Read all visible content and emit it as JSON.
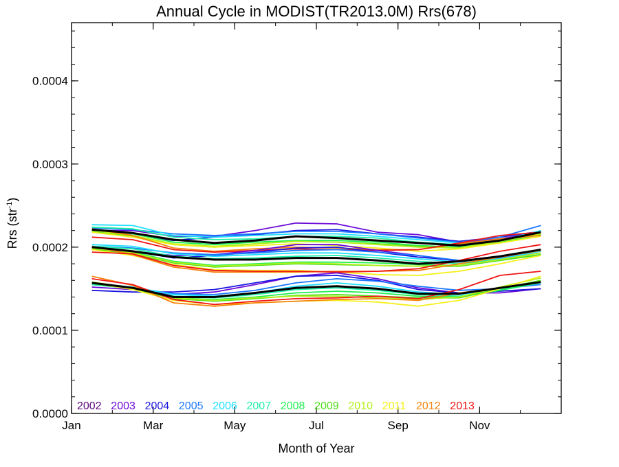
{
  "chart_data": {
    "type": "line",
    "title": "Annual Cycle in MODIST(TR2013.0M) Rrs(678)",
    "xlabel": "Month of Year",
    "ylabel_main": "Rrs (str",
    "ylabel_sup": "-1",
    "ylabel_close": ")",
    "xlim": [
      1,
      13
    ],
    "ylim": [
      0.0,
      0.00047
    ],
    "x_ticks": [
      {
        "value": 1,
        "label": "Jan"
      },
      {
        "value": 3,
        "label": "Mar"
      },
      {
        "value": 5,
        "label": "May"
      },
      {
        "value": 7,
        "label": "Jul"
      },
      {
        "value": 9,
        "label": "Sep"
      },
      {
        "value": 11,
        "label": "Nov"
      }
    ],
    "y_ticks": [
      {
        "value": 0.0,
        "label": "0.0000"
      },
      {
        "value": 0.0001,
        "label": "0.0001"
      },
      {
        "value": 0.0002,
        "label": "0.0002"
      },
      {
        "value": 0.0003,
        "label": "0.0003"
      },
      {
        "value": 0.0004,
        "label": "0.0004"
      }
    ],
    "x": [
      1.5,
      2.5,
      3.5,
      4.5,
      5.5,
      6.5,
      7.5,
      8.5,
      9.5,
      10.5,
      11.5,
      12.5
    ],
    "legend": {
      "placement": "bottom-left inside plot",
      "entries": [
        {
          "label": "2002",
          "color": "#5a0a78"
        },
        {
          "label": "2003",
          "color": "#6a0ad8"
        },
        {
          "label": "2004",
          "color": "#1a14e0"
        },
        {
          "label": "2005",
          "color": "#1a78ff"
        },
        {
          "label": "2006",
          "color": "#1ee0ff"
        },
        {
          "label": "2007",
          "color": "#1ef0a8"
        },
        {
          "label": "2008",
          "color": "#1ef050"
        },
        {
          "label": "2009",
          "color": "#50e01a"
        },
        {
          "label": "2010",
          "color": "#b4f01a"
        },
        {
          "label": "2011",
          "color": "#f5f01a"
        },
        {
          "label": "2012",
          "color": "#f5820a"
        },
        {
          "label": "2013",
          "color": "#f01414"
        }
      ]
    },
    "series": [
      {
        "group": "upper",
        "year": "2003",
        "color": "#6a0ad8",
        "values": [
          0.00022,
          0.00022,
          0.000213,
          0.000213,
          0.00022,
          0.000229,
          0.000228,
          0.000218,
          0.000215,
          0.000206,
          0.00021,
          0.000218
        ]
      },
      {
        "group": "upper",
        "year": "2004",
        "color": "#1a14e0",
        "values": [
          0.000218,
          0.000216,
          0.000208,
          0.000212,
          0.000215,
          0.00022,
          0.000221,
          0.000216,
          0.000212,
          0.000207,
          0.000212,
          0.000219
        ]
      },
      {
        "group": "upper",
        "year": "2005",
        "color": "#1a78ff",
        "values": [
          0.000223,
          0.000221,
          0.000216,
          0.000214,
          0.000216,
          0.000219,
          0.000219,
          0.000216,
          0.000211,
          0.000206,
          0.000212,
          0.000226
        ]
      },
      {
        "group": "upper",
        "year": "2006",
        "color": "#1ee0ff",
        "values": [
          0.000227,
          0.000226,
          0.000214,
          0.000212,
          0.000214,
          0.000216,
          0.000216,
          0.000213,
          0.000209,
          0.000205,
          0.000208,
          0.00022
        ]
      },
      {
        "group": "upper",
        "year": "2007",
        "color": "#1ef0a8",
        "values": [
          0.000224,
          0.000222,
          0.000212,
          0.000209,
          0.00021,
          0.000213,
          0.000213,
          0.000211,
          0.000206,
          0.000203,
          0.000208,
          0.000217
        ]
      },
      {
        "group": "upper",
        "year": "2008",
        "color": "#1ef050",
        "values": [
          0.000221,
          0.000216,
          0.000206,
          0.000203,
          0.000206,
          0.000208,
          0.000208,
          0.000206,
          0.000202,
          0.0002,
          0.000206,
          0.000215
        ]
      },
      {
        "group": "upper",
        "year": "2009",
        "color": "#50e01a",
        "values": [
          0.000219,
          0.000213,
          0.000203,
          0.0002,
          0.000204,
          0.000207,
          0.000206,
          0.000204,
          0.000201,
          0.000199,
          0.000207,
          0.000215
        ]
      },
      {
        "group": "upper",
        "year": "2010",
        "color": "#b4f01a",
        "values": [
          0.00022,
          0.000214,
          0.000204,
          0.000201,
          0.000204,
          0.000207,
          0.000206,
          0.000203,
          0.0002,
          0.000199,
          0.000207,
          0.000216
        ]
      },
      {
        "group": "upper",
        "year": "2011",
        "color": "#f5f01a",
        "values": [
          0.000218,
          0.000212,
          0.000203,
          0.0002,
          0.000202,
          0.000204,
          0.000202,
          0.000199,
          0.000195,
          0.000198,
          0.000205,
          0.000213
        ]
      },
      {
        "group": "upper",
        "year": "2012",
        "color": "#f5820a",
        "values": [
          0.000222,
          0.000214,
          0.000199,
          0.000195,
          0.000198,
          0.0002,
          0.000199,
          0.000197,
          0.000197,
          0.000204,
          0.00021,
          0.000214
        ]
      },
      {
        "group": "upper",
        "year": "2013",
        "color": "#f01414",
        "values": [
          0.000212,
          0.000209,
          0.000197,
          0.000194,
          0.000196,
          0.000198,
          0.000197,
          0.000196,
          0.000197,
          0.000205,
          0.000214,
          0.000218
        ]
      },
      {
        "group": "upper",
        "year": "mean",
        "color": "#000000",
        "bold": true,
        "values": [
          0.000221,
          0.000217,
          0.000209,
          0.000205,
          0.000208,
          0.000213,
          0.000211,
          0.000208,
          0.000205,
          0.000202,
          0.000208,
          0.000218
        ]
      },
      {
        "group": "middle",
        "year": "2003",
        "color": "#6a0ad8",
        "values": [
          0.000199,
          0.000195,
          0.00019,
          0.000191,
          0.000196,
          0.000203,
          0.000203,
          0.000196,
          0.00019,
          0.000183,
          0.000186,
          0.000193
        ]
      },
      {
        "group": "middle",
        "year": "2004",
        "color": "#1a14e0",
        "values": [
          0.000197,
          0.000195,
          0.000187,
          0.00019,
          0.000194,
          0.000199,
          0.0002,
          0.000194,
          0.000188,
          0.000184,
          0.000187,
          0.000196
        ]
      },
      {
        "group": "middle",
        "year": "2005",
        "color": "#1a78ff",
        "values": [
          0.000201,
          0.000199,
          0.000193,
          0.000191,
          0.000193,
          0.000196,
          0.000197,
          0.000194,
          0.00019,
          0.000184,
          0.000188,
          0.000197
        ]
      },
      {
        "group": "middle",
        "year": "2006",
        "color": "#1ee0ff",
        "values": [
          0.000203,
          0.000201,
          0.000192,
          0.000189,
          0.000191,
          0.000193,
          0.000193,
          0.00019,
          0.000186,
          0.000182,
          0.000186,
          0.000195
        ]
      },
      {
        "group": "middle",
        "year": "2007",
        "color": "#1ef0a8",
        "values": [
          0.000201,
          0.000198,
          0.000189,
          0.000186,
          0.000187,
          0.000189,
          0.00019,
          0.000187,
          0.000183,
          0.00018,
          0.000185,
          0.000193
        ]
      },
      {
        "group": "middle",
        "year": "2008",
        "color": "#1ef050",
        "values": [
          0.000199,
          0.000194,
          0.000183,
          0.000178,
          0.00018,
          0.000182,
          0.000182,
          0.000181,
          0.000179,
          0.000178,
          0.000184,
          0.000191
        ]
      },
      {
        "group": "middle",
        "year": "2009",
        "color": "#50e01a",
        "values": [
          0.000198,
          0.000192,
          0.000181,
          0.000176,
          0.000178,
          0.00018,
          0.000179,
          0.000178,
          0.000177,
          0.000177,
          0.000184,
          0.000191
        ]
      },
      {
        "group": "middle",
        "year": "2010",
        "color": "#b4f01a",
        "values": [
          0.000199,
          0.000193,
          0.000182,
          0.000177,
          0.000179,
          0.000181,
          0.00018,
          0.000178,
          0.000177,
          0.000178,
          0.000185,
          0.000193
        ]
      },
      {
        "group": "middle",
        "year": "2011",
        "color": "#f5f01a",
        "values": [
          0.000197,
          0.00019,
          0.000179,
          0.000173,
          0.000172,
          0.000172,
          0.00017,
          0.000167,
          0.000166,
          0.000171,
          0.00018,
          0.00019
        ]
      },
      {
        "group": "middle",
        "year": "2012",
        "color": "#f5820a",
        "values": [
          0.000201,
          0.000191,
          0.000176,
          0.00017,
          0.00017,
          0.00017,
          0.000171,
          0.000171,
          0.000172,
          0.00018,
          0.000188,
          0.000196
        ]
      },
      {
        "group": "middle",
        "year": "2013",
        "color": "#f01414",
        "values": [
          0.000194,
          0.000192,
          0.000178,
          0.000172,
          0.000171,
          0.000171,
          0.00017,
          0.000171,
          0.000174,
          0.000184,
          0.000195,
          0.000203
        ]
      },
      {
        "group": "middle",
        "year": "mean",
        "color": "#000000",
        "bold": true,
        "values": [
          0.0002,
          0.000195,
          0.000188,
          0.000185,
          0.000185,
          0.000187,
          0.000187,
          0.000184,
          0.00018,
          0.000183,
          0.000189,
          0.000197
        ]
      },
      {
        "group": "lower",
        "year": "2003",
        "color": "#6a0ad8",
        "values": [
          0.000152,
          0.000149,
          0.000143,
          0.000146,
          0.000155,
          0.000165,
          0.000169,
          0.000162,
          0.000151,
          0.000145,
          0.000145,
          0.00015
        ]
      },
      {
        "group": "lower",
        "year": "2004",
        "color": "#1a14e0",
        "values": [
          0.000148,
          0.000146,
          0.000146,
          0.000149,
          0.000157,
          0.000165,
          0.000166,
          0.00016,
          0.000149,
          0.000145,
          0.000147,
          0.00015
        ]
      },
      {
        "group": "lower",
        "year": "2005",
        "color": "#1a78ff",
        "values": [
          0.000155,
          0.000151,
          0.000144,
          0.000143,
          0.000148,
          0.000157,
          0.000162,
          0.000159,
          0.000153,
          0.000148,
          0.00015,
          0.000155
        ]
      },
      {
        "group": "lower",
        "year": "2006",
        "color": "#1ee0ff",
        "values": [
          0.000157,
          0.000152,
          0.000143,
          0.000141,
          0.000145,
          0.000153,
          0.000157,
          0.000153,
          0.000146,
          0.000143,
          0.000149,
          0.000157
        ]
      },
      {
        "group": "lower",
        "year": "2007",
        "color": "#1ef0a8",
        "values": [
          0.000155,
          0.00015,
          0.000141,
          0.000139,
          0.000143,
          0.000149,
          0.000151,
          0.000148,
          0.000143,
          0.000141,
          0.000148,
          0.000157
        ]
      },
      {
        "group": "lower",
        "year": "2008",
        "color": "#1ef050",
        "values": [
          0.000156,
          0.000151,
          0.000139,
          0.000137,
          0.00014,
          0.000145,
          0.000147,
          0.000145,
          0.000141,
          0.00014,
          0.000148,
          0.000158
        ]
      },
      {
        "group": "lower",
        "year": "2009",
        "color": "#50e01a",
        "values": [
          0.000157,
          0.00015,
          0.000138,
          0.000135,
          0.000138,
          0.000142,
          0.000143,
          0.000141,
          0.000139,
          0.000139,
          0.00015,
          0.00016
        ]
      },
      {
        "group": "lower",
        "year": "2010",
        "color": "#b4f01a",
        "values": [
          0.000158,
          0.000151,
          0.000139,
          0.000136,
          0.000139,
          0.000141,
          0.000141,
          0.000139,
          0.000137,
          0.00014,
          0.000152,
          0.000163
        ]
      },
      {
        "group": "lower",
        "year": "2011",
        "color": "#f5f01a",
        "values": [
          0.000157,
          0.000149,
          0.000136,
          0.000131,
          0.000133,
          0.000135,
          0.000136,
          0.000134,
          0.000129,
          0.000136,
          0.00015,
          0.000165
        ]
      },
      {
        "group": "lower",
        "year": "2012",
        "color": "#f5820a",
        "values": [
          0.000165,
          0.000154,
          0.000133,
          0.000129,
          0.000133,
          0.000135,
          0.000137,
          0.000138,
          0.000136,
          0.000145,
          0.000151,
          0.000158
        ]
      },
      {
        "group": "lower",
        "year": "2013",
        "color": "#f01414",
        "values": [
          0.000162,
          0.000155,
          0.000137,
          0.000131,
          0.000135,
          0.000138,
          0.000139,
          0.000141,
          0.000138,
          0.000149,
          0.000166,
          0.000171
        ]
      },
      {
        "group": "lower",
        "year": "mean",
        "color": "#000000",
        "bold": true,
        "values": [
          0.000157,
          0.000151,
          0.00014,
          0.00014,
          0.000145,
          0.000151,
          0.000153,
          0.00015,
          0.000144,
          0.000144,
          0.000151,
          0.000158
        ]
      }
    ]
  }
}
